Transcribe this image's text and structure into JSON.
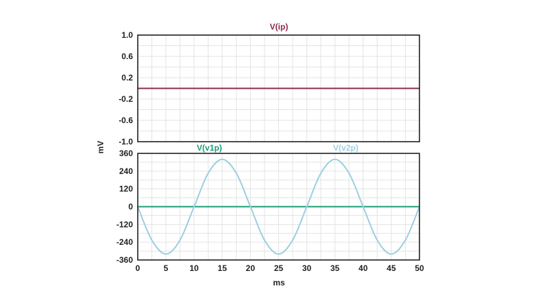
{
  "chart_data": [
    {
      "type": "line",
      "panel": "top",
      "title": "V(ip)",
      "ylim": [
        -1.0,
        1.0
      ],
      "yticks": [
        "1.0",
        "0.6",
        "0.2",
        "-0.2",
        "-0.6",
        "-1.0"
      ],
      "ytick_values": [
        1.0,
        0.6,
        0.2,
        -0.2,
        -0.6,
        -1.0
      ],
      "xlim": [
        0,
        50
      ],
      "grid": true,
      "series": [
        {
          "name": "V(ip)",
          "color": "#8a2a4e",
          "x": [
            0,
            50
          ],
          "y": [
            0.0,
            0.0
          ]
        }
      ]
    },
    {
      "type": "line",
      "panel": "bottom",
      "ylim": [
        -360,
        360
      ],
      "yticks": [
        "360",
        "240",
        "120",
        "0",
        "-120",
        "-240",
        "-360"
      ],
      "ytick_values": [
        360,
        240,
        120,
        0,
        -120,
        -240,
        -360
      ],
      "xlim": [
        0,
        50
      ],
      "xticks": [
        "0",
        "5",
        "10",
        "15",
        "20",
        "25",
        "30",
        "35",
        "40",
        "45",
        "50"
      ],
      "xtick_values": [
        0,
        5,
        10,
        15,
        20,
        25,
        30,
        35,
        40,
        45,
        50
      ],
      "xlabel": "ms",
      "ylabel": "mV",
      "grid": true,
      "series": [
        {
          "name": "V(v1p)",
          "color": "#1a9e77",
          "x": [
            0,
            50
          ],
          "y": [
            0,
            0
          ]
        },
        {
          "name": "V(v2p)",
          "color": "#9ccfe0",
          "x": [
            0,
            2.5,
            5,
            7.5,
            10,
            12.5,
            15,
            17.5,
            20,
            22.5,
            25,
            27.5,
            30,
            32.5,
            35,
            37.5,
            40,
            42.5,
            45,
            47.5,
            50
          ],
          "y": [
            0,
            -226,
            -320,
            -226,
            0,
            226,
            320,
            226,
            0,
            -226,
            -320,
            -226,
            0,
            226,
            320,
            226,
            0,
            -226,
            -320,
            -226,
            0
          ]
        }
      ]
    }
  ]
}
